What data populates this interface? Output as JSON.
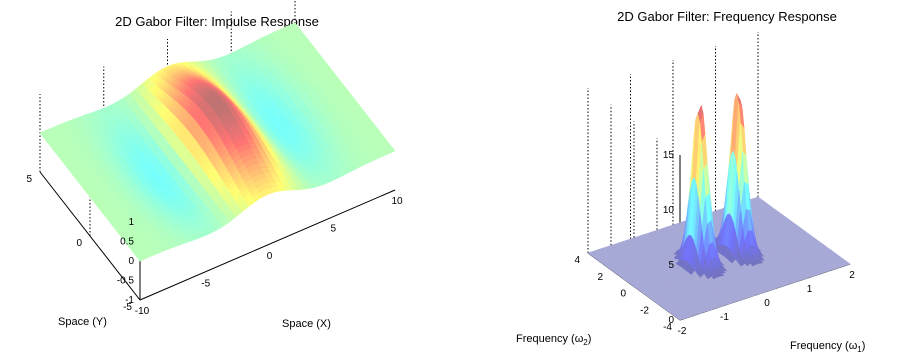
{
  "chart_data": [
    {
      "type": "surface",
      "title": "2D Gabor Filter: Impulse Response",
      "xlabel": "Space (X)",
      "ylabel": "Space (Y)",
      "zlabel": "",
      "xlim": [
        -10,
        10
      ],
      "ylim": [
        -5,
        5
      ],
      "zlim": [
        -1,
        1
      ],
      "x_ticks": [
        "-10",
        "-5",
        "0",
        "5",
        "10"
      ],
      "y_ticks": [
        "-5",
        "0",
        "5"
      ],
      "z_ticks": [
        "-1",
        "-0.5",
        "0",
        "0.5",
        "1"
      ],
      "surface": {
        "function": "gabor_impulse",
        "amplitude": 1.0,
        "sigma": 3.2,
        "frequency_cycles": 0.08,
        "orientation": "along X"
      },
      "colormap": "jet-pastel",
      "grid": true
    },
    {
      "type": "surface",
      "title": "2D Gabor Filter: Frequency Response",
      "xlabel": "Frequency (ω",
      "xlabel_sub": "1",
      "xlabel_close": ")",
      "ylabel": "Frequency (ω",
      "ylabel_sub": "2",
      "ylabel_close": ")",
      "zlabel": "",
      "xlim": [
        -2,
        2
      ],
      "ylim": [
        -4,
        4
      ],
      "zlim": [
        0,
        15
      ],
      "x_ticks": [
        "-2",
        "-1",
        "0",
        "1",
        "2"
      ],
      "y_ticks": [
        "-4",
        "-2",
        "0",
        "2",
        "4"
      ],
      "z_ticks": [
        "0",
        "5",
        "10",
        "15"
      ],
      "surface": {
        "function": "gabor_frequency",
        "peaks": [
          {
            "w1": 0.45,
            "w2": 0,
            "height": 15
          },
          {
            "w1": -0.45,
            "w2": 0,
            "height": 15
          }
        ]
      },
      "colormap": "jet-pastel",
      "grid": true
    }
  ]
}
